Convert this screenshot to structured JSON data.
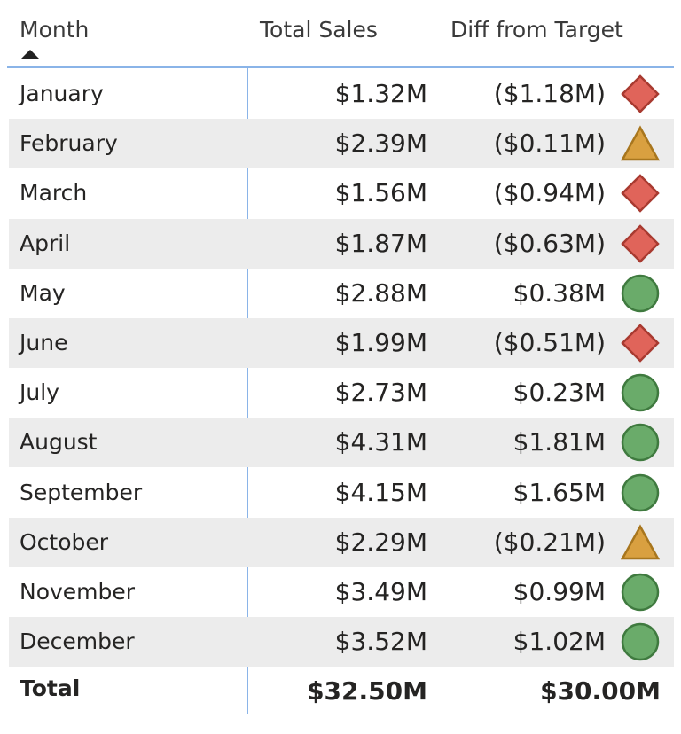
{
  "table": {
    "columns": [
      "Month",
      "Total Sales",
      "Diff from Target"
    ],
    "rows": [
      [
        "January",
        "$1.32M",
        "($1.18M)"
      ],
      [
        "February",
        "$2.39M",
        "($0.11M)"
      ],
      [
        "March",
        "$1.56M",
        "($0.94M)"
      ],
      [
        "April",
        "$1.87M",
        "($0.63M)"
      ],
      [
        "May",
        "$2.88M",
        "$0.38M"
      ],
      [
        "June",
        "$1.99M",
        "($0.51M)"
      ],
      [
        "July",
        "$2.73M",
        "$0.23M"
      ],
      [
        "August",
        "$4.31M",
        "$1.81M"
      ],
      [
        "September",
        "$4.15M",
        "$1.65M"
      ],
      [
        "October",
        "$2.29M",
        "($0.21M)"
      ],
      [
        "November",
        "$3.49M",
        "$0.99M"
      ],
      [
        "December",
        "$3.52M",
        "$1.02M"
      ]
    ],
    "total": [
      "Total",
      "$32.50M",
      "$30.00M"
    ]
  }
}
